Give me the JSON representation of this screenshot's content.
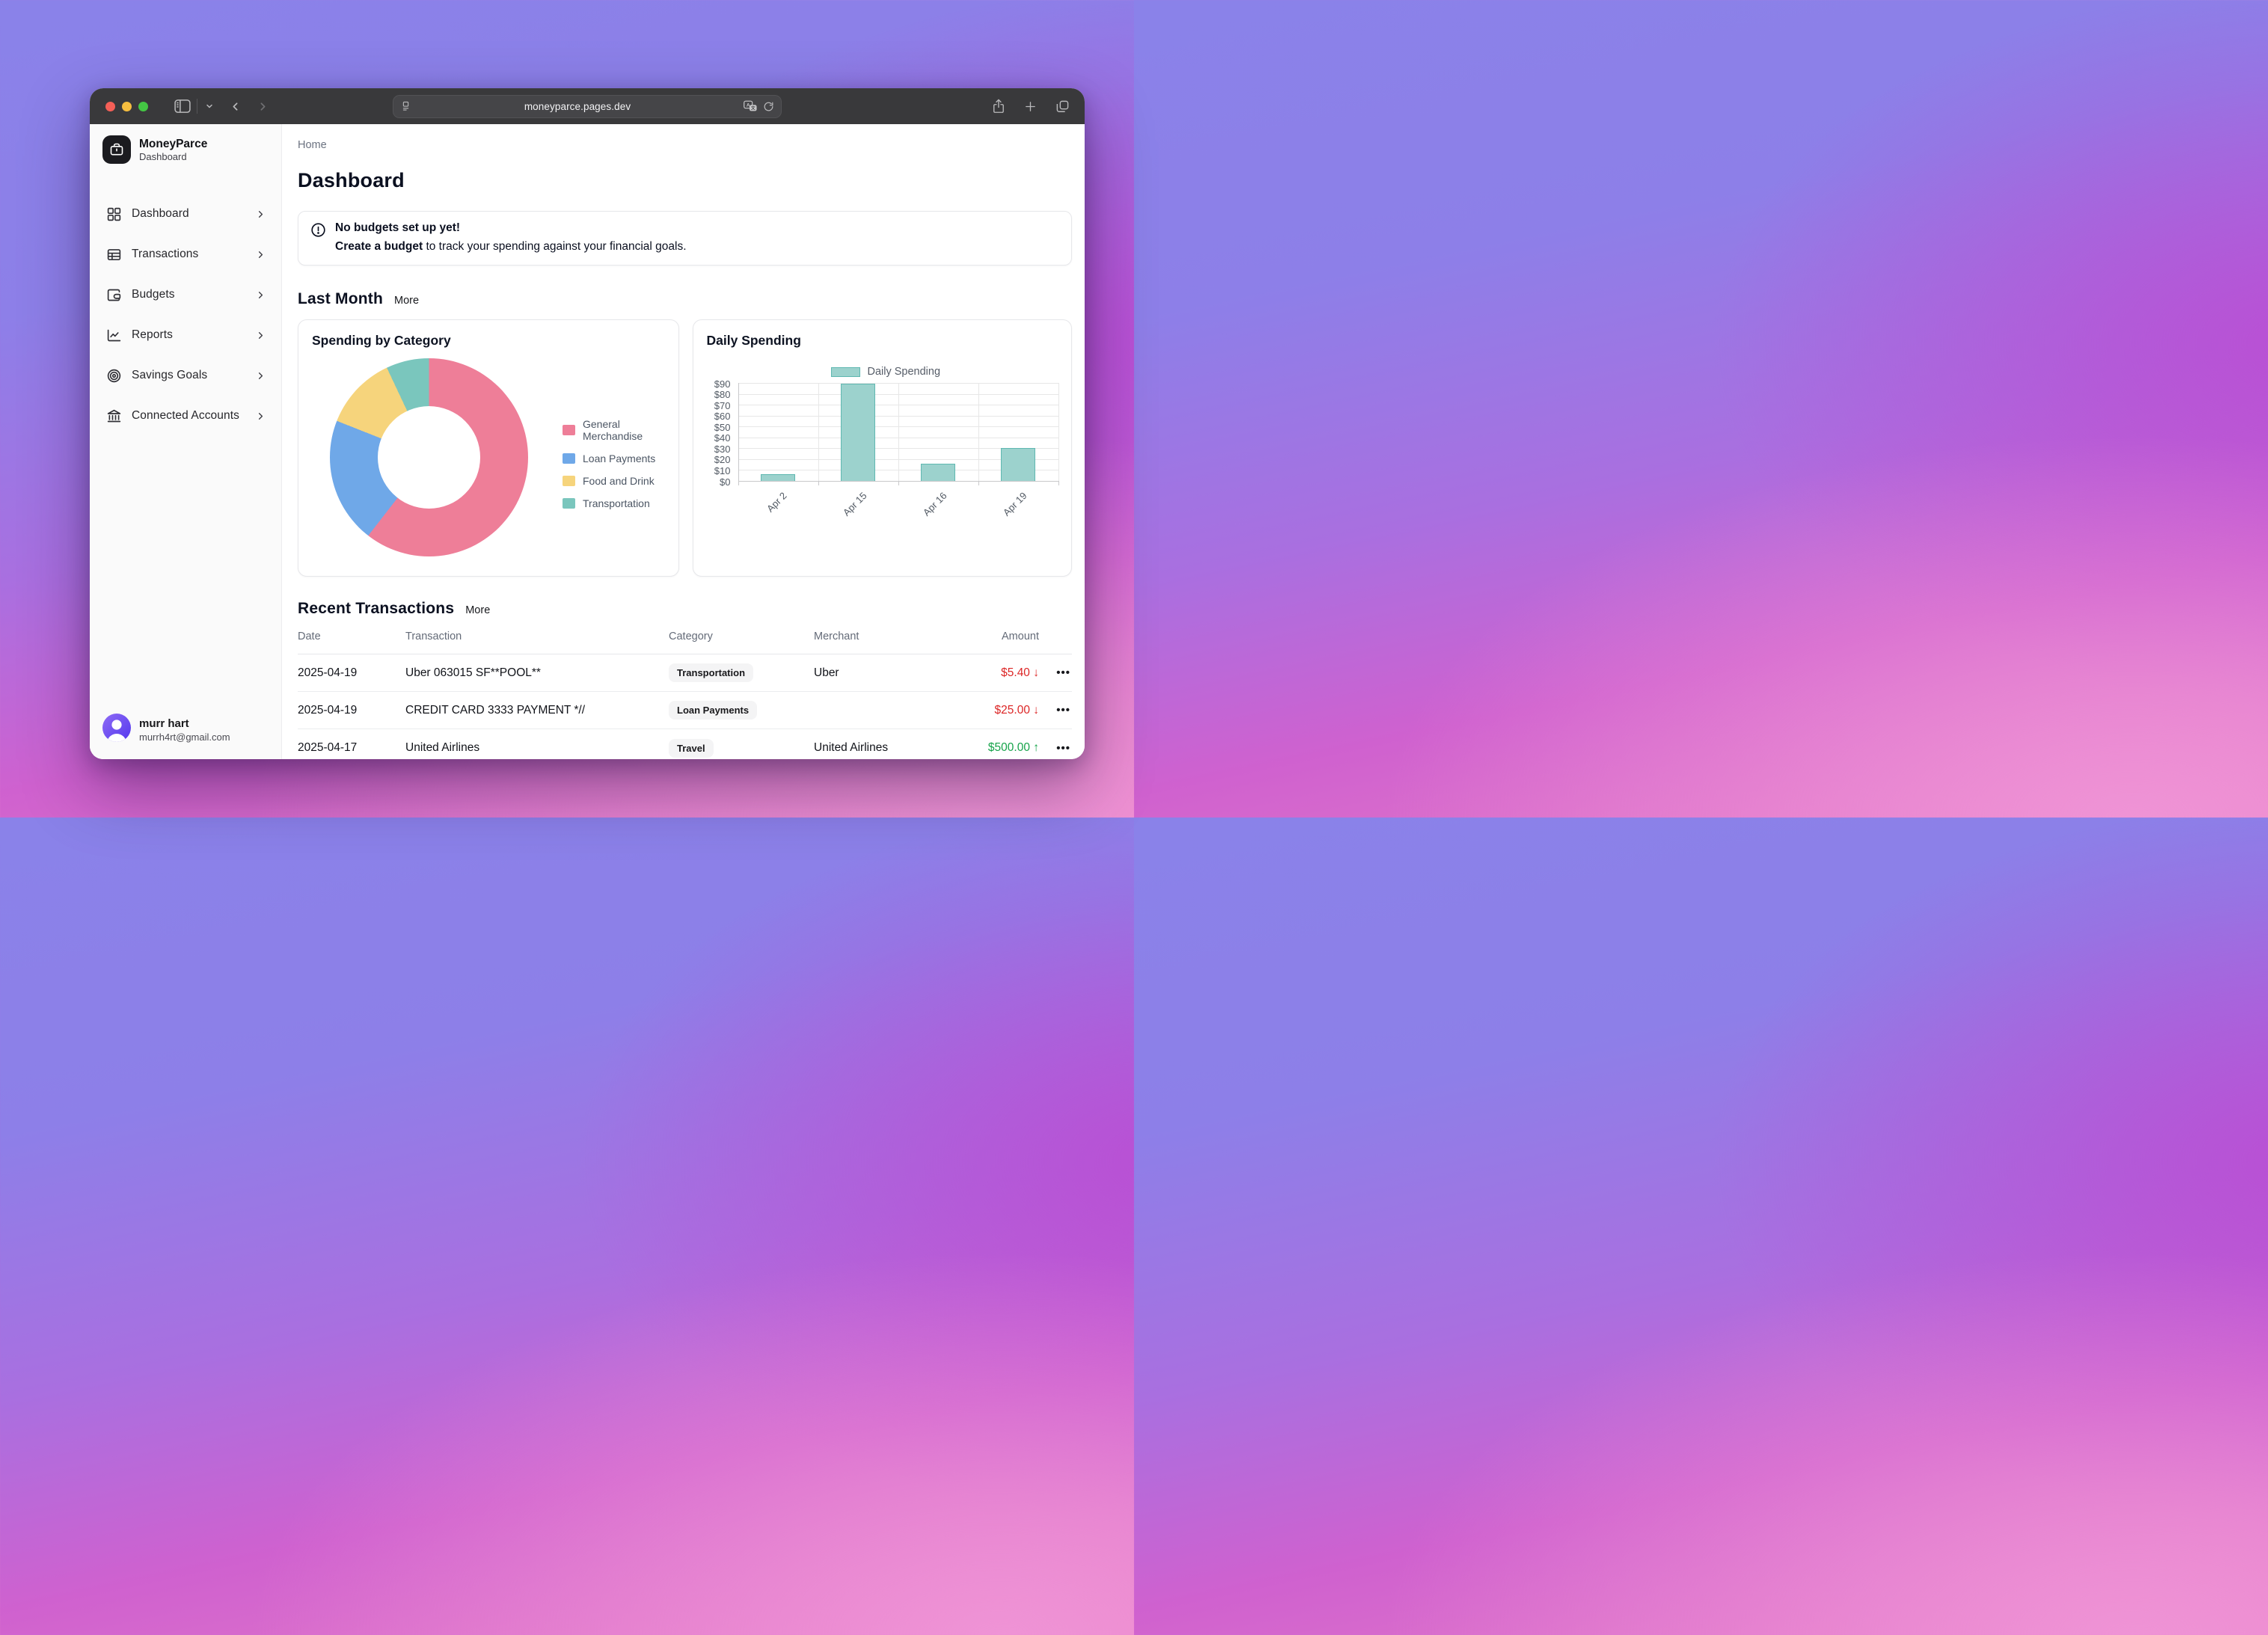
{
  "browser": {
    "url": "moneyparce.pages.dev"
  },
  "sidebar": {
    "app_name": "MoneyParce",
    "app_subtitle": "Dashboard",
    "items": [
      {
        "label": "Dashboard",
        "icon": "layout-grid-icon"
      },
      {
        "label": "Transactions",
        "icon": "table-icon"
      },
      {
        "label": "Budgets",
        "icon": "wallet-icon"
      },
      {
        "label": "Reports",
        "icon": "chart-line-icon"
      },
      {
        "label": "Savings Goals",
        "icon": "target-icon"
      },
      {
        "label": "Connected Accounts",
        "icon": "bank-icon"
      }
    ],
    "user": {
      "name": "murr hart",
      "email": "murrh4rt@gmail.com"
    }
  },
  "main": {
    "breadcrumb": "Home",
    "title": "Dashboard",
    "alert": {
      "title": "No budgets set up yet!",
      "cta": "Create a budget",
      "desc_rest": " to track your spending against your financial goals."
    },
    "last_month": {
      "title": "Last Month",
      "more": "More"
    },
    "cards": {
      "spending_title": "Spending by Category",
      "daily_title": "Daily Spending"
    },
    "transactions": {
      "title": "Recent Transactions",
      "more": "More",
      "columns": [
        "Date",
        "Transaction",
        "Category",
        "Merchant",
        "Amount"
      ],
      "rows": [
        {
          "date": "2025-04-19",
          "name": "Uber 063015 SF**POOL**",
          "category": "Transportation",
          "merchant": "Uber",
          "amount": "$5.40",
          "direction": "down"
        },
        {
          "date": "2025-04-19",
          "name": "CREDIT CARD 3333 PAYMENT *//",
          "category": "Loan Payments",
          "merchant": "",
          "amount": "$25.00",
          "direction": "down"
        },
        {
          "date": "2025-04-17",
          "name": "United Airlines",
          "category": "Travel",
          "merchant": "United Airlines",
          "amount": "$500.00",
          "direction": "up"
        }
      ]
    }
  },
  "chart_data": [
    {
      "type": "pie",
      "variant": "doughnut",
      "title": "Spending by Category",
      "labels": [
        "General Merchandise",
        "Loan Payments",
        "Food and Drink",
        "Transportation"
      ],
      "percent_estimates": [
        60.5,
        20.5,
        12,
        7
      ],
      "colors": [
        "#EE7E98",
        "#6FA8E8",
        "#F6D47C",
        "#7AC6BD"
      ],
      "legend_position": "right",
      "cutout_percent": 51
    },
    {
      "type": "bar",
      "title": "Daily Spending",
      "legend_label": "Daily Spending",
      "categories": [
        "Apr 2",
        "Apr 15",
        "Apr 16",
        "Apr 19"
      ],
      "values": [
        6.1,
        89.1,
        16.0,
        30.4
      ],
      "ylim": [
        0,
        90
      ],
      "ytick_labels": [
        "$90",
        "$80",
        "$70",
        "$60",
        "$50",
        "$40",
        "$30",
        "$20",
        "$10",
        "$0"
      ],
      "grid": true,
      "bar_color": "#9CD2CD",
      "bar_border": "#5FB8B1",
      "legend_position": "top"
    }
  ],
  "colors": {
    "accent_red": "#DC2626",
    "accent_green": "#16A34A",
    "sidebar_bg": "#FAFAFA",
    "chrome_bg": "#39393B"
  }
}
